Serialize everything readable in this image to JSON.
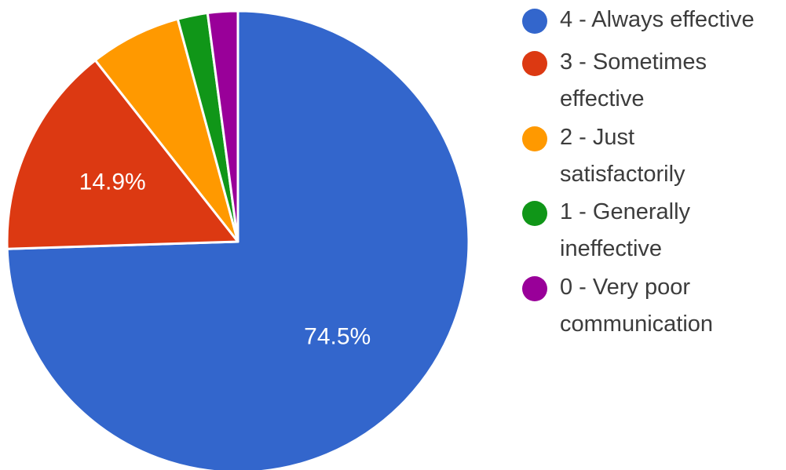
{
  "chart_data": {
    "type": "pie",
    "slices": [
      {
        "label": "4 - Always effective",
        "line1": "4 - Always effective",
        "line2": "",
        "value": 74.5,
        "data_label": "74.5%",
        "color": "#3366cc"
      },
      {
        "label": "3 - Sometimes effective",
        "line1": "3 - Sometimes",
        "line2": "effective",
        "value": 14.9,
        "data_label": "14.9%",
        "color": "#dc3912"
      },
      {
        "label": "2 - Just satisfactorily",
        "line1": "2 - Just",
        "line2": "satisfactorily",
        "value": 6.4,
        "data_label": "",
        "color": "#ff9900"
      },
      {
        "label": "1 - Generally ineffective",
        "line1": "1 - Generally",
        "line2": "ineffective",
        "value": 2.1,
        "data_label": "",
        "color": "#109618"
      },
      {
        "label": "0 - Very poor communication",
        "line1": "0 - Very poor",
        "line2": "communication",
        "value": 2.1,
        "data_label": "",
        "color": "#990099"
      }
    ],
    "legend_position": "right",
    "start_angle": "12 o'clock",
    "direction": "clockwise"
  }
}
